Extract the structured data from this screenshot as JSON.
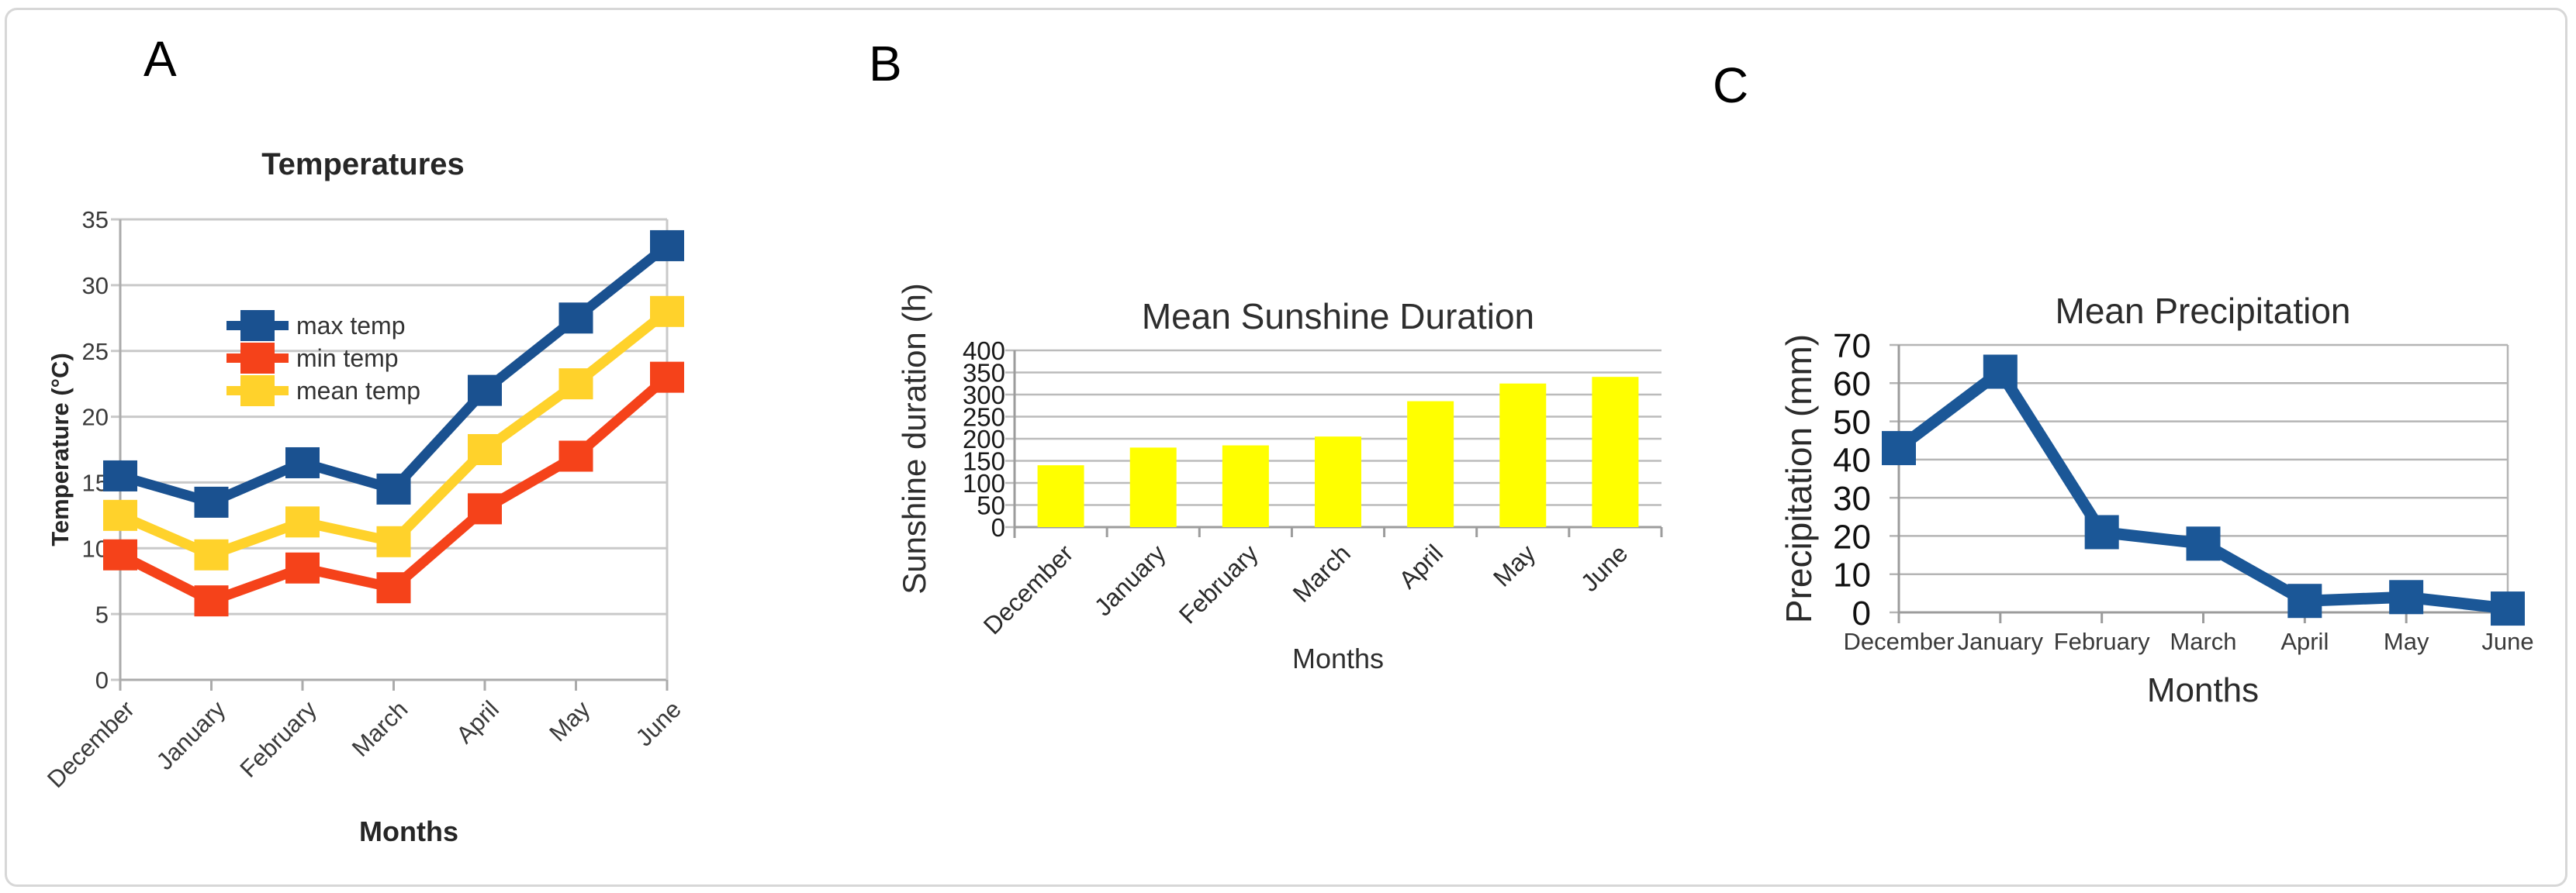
{
  "figure": {
    "background": "#FFFFFF",
    "border_color": "#D7D7D7"
  },
  "panels": [
    {
      "letter": "A"
    },
    {
      "letter": "B"
    },
    {
      "letter": "C"
    }
  ],
  "chart_data": [
    {
      "panel": "A",
      "id": "temperatures",
      "type": "line",
      "title": "Temperatures",
      "xlabel": "Months",
      "ylabel": "Temperature (°C)",
      "categories": [
        "December",
        "January",
        "February",
        "March",
        "April",
        "May",
        "June"
      ],
      "ylim": [
        0,
        35
      ],
      "yticks": [
        0,
        5,
        10,
        15,
        20,
        25,
        30,
        35
      ],
      "grid": true,
      "legend_position": "inside-left",
      "series": [
        {
          "name": "max temp",
          "color": "#1A5190",
          "values": [
            15.5,
            13.5,
            16.5,
            14.5,
            22,
            27.5,
            33
          ]
        },
        {
          "name": "min temp",
          "color": "#F5421A",
          "values": [
            9.5,
            6,
            8.5,
            7,
            13,
            17,
            23
          ]
        },
        {
          "name": "mean temp",
          "color": "#FFD22B",
          "values": [
            12.5,
            9.5,
            12,
            10.5,
            17.5,
            22.5,
            28
          ]
        }
      ]
    },
    {
      "panel": "B",
      "id": "sunshine",
      "type": "bar",
      "title": "Mean Sunshine Duration",
      "xlabel": "Months",
      "ylabel": "Sunshine duration (h)",
      "categories": [
        "December",
        "January",
        "February",
        "March",
        "April",
        "May",
        "June"
      ],
      "ylim": [
        0,
        400
      ],
      "yticks": [
        0,
        50,
        100,
        150,
        200,
        250,
        300,
        350,
        400
      ],
      "grid": true,
      "bar_color": "#FFFF00",
      "values": [
        140,
        180,
        185,
        205,
        285,
        325,
        340
      ]
    },
    {
      "panel": "C",
      "id": "precipitation",
      "type": "line",
      "title": "Mean Precipitation",
      "xlabel": "Months",
      "ylabel": "Precipitation (mm)",
      "categories": [
        "December",
        "January",
        "February",
        "March",
        "April",
        "May",
        "June"
      ],
      "ylim": [
        0,
        70
      ],
      "yticks": [
        0,
        10,
        20,
        30,
        40,
        50,
        60,
        70
      ],
      "grid": true,
      "series": [
        {
          "name": "mean precipitation",
          "color": "#1B5797",
          "values": [
            43,
            63,
            21,
            18,
            3,
            4,
            1
          ]
        }
      ]
    }
  ]
}
